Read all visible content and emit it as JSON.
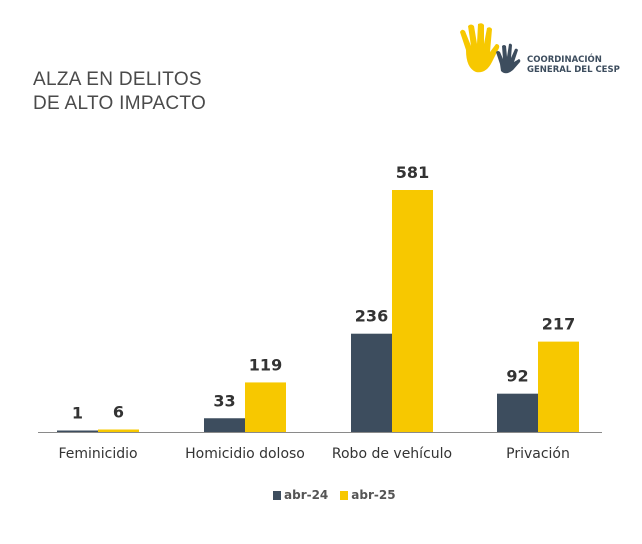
{
  "logo": {
    "text_line1": "COORDINACIÓN",
    "text_line2": "GENERAL DEL CESP"
  },
  "chart_data": {
    "type": "bar",
    "title_lines": [
      "ALZA EN DELITOS",
      "DE ALTO IMPACTO"
    ],
    "categories": [
      "Feminicidio",
      "Homicidio doloso",
      "Robo de vehículo",
      "Privación"
    ],
    "series": [
      {
        "name": "abr-24",
        "values": [
          1,
          33,
          236,
          92
        ],
        "color": "#3d4d5e"
      },
      {
        "name": "abr-25",
        "values": [
          6,
          119,
          581,
          217
        ],
        "color": "#f7c800"
      }
    ],
    "ylim": [
      0,
      581
    ],
    "grid": false,
    "legend": "bottom-center",
    "data_labels": true
  }
}
